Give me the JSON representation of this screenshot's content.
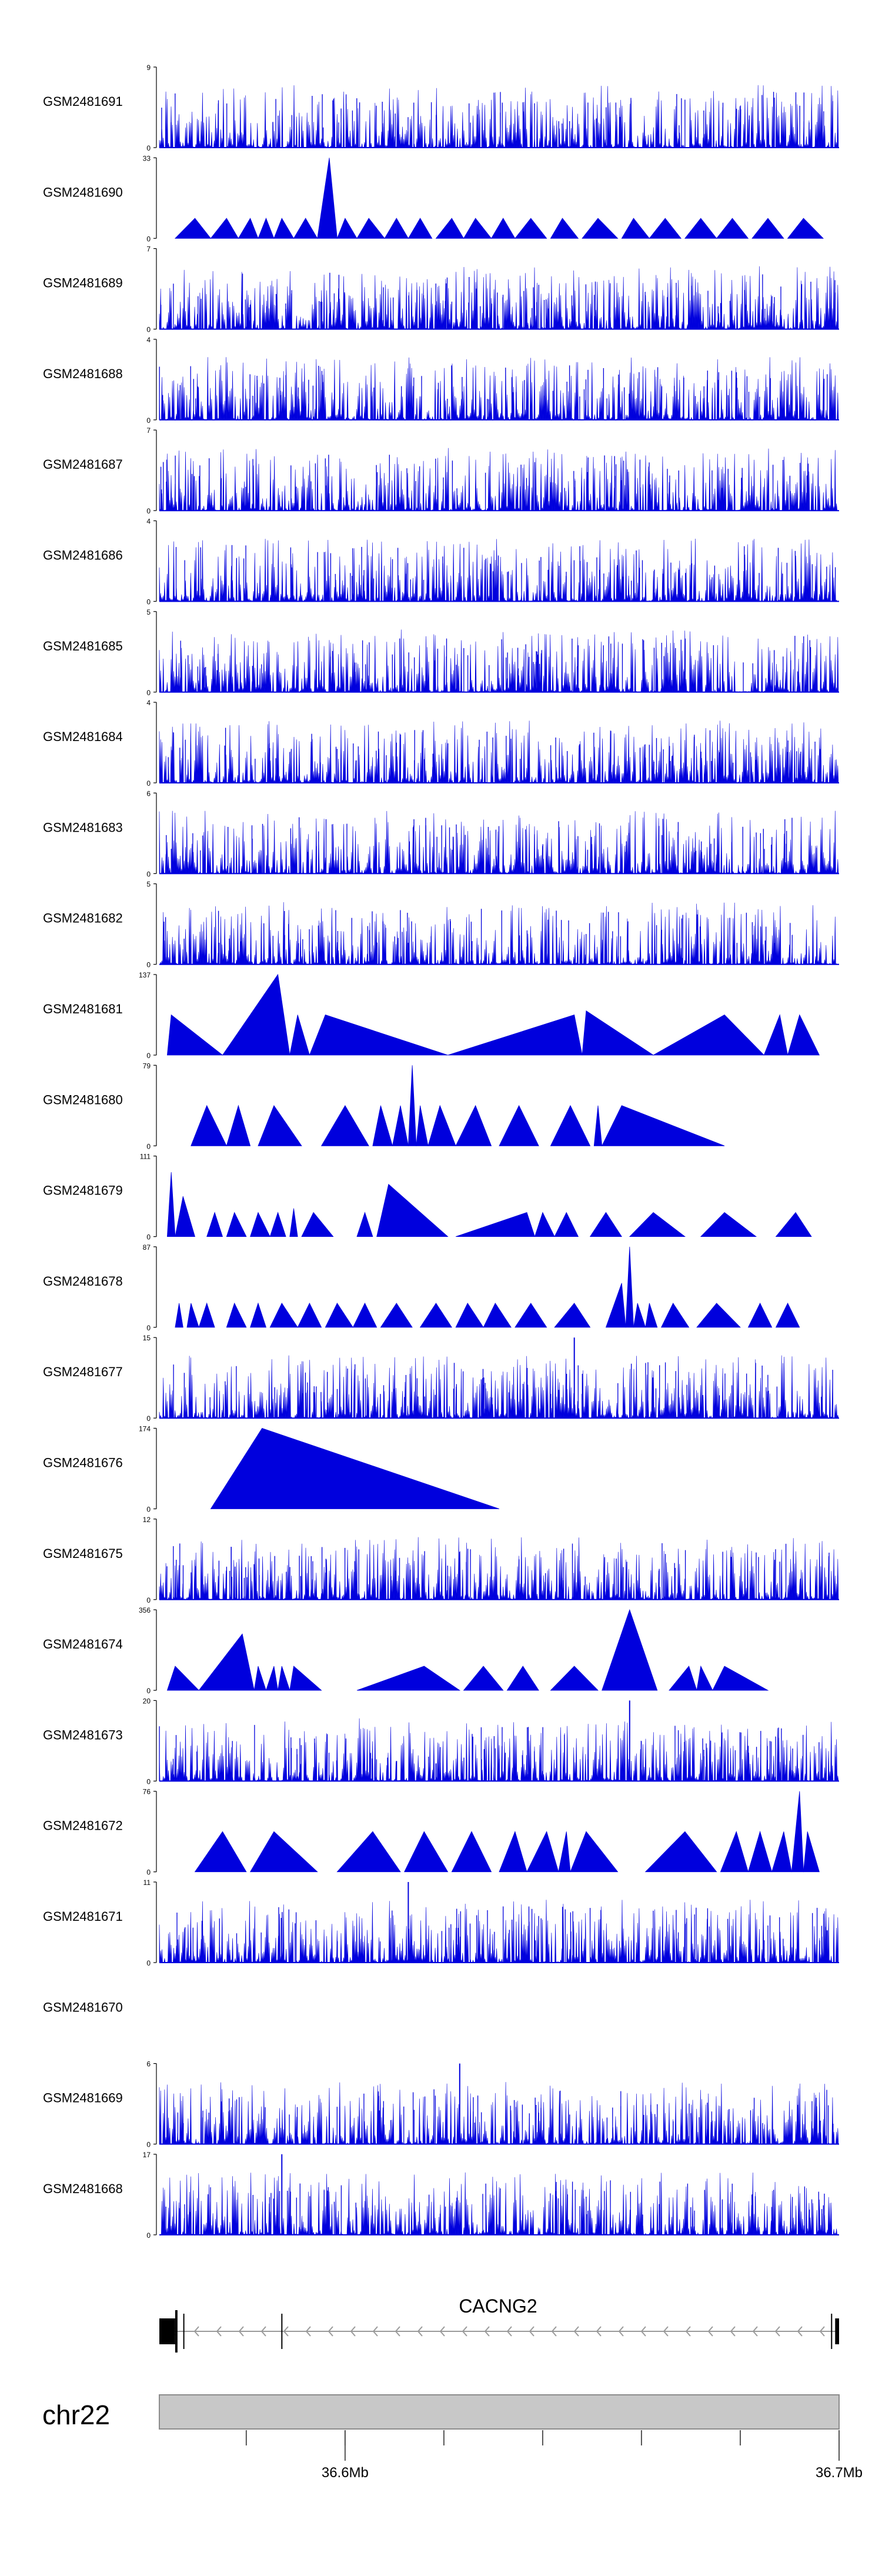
{
  "colors": {
    "signal": "#0000dd",
    "chrom_bar": "#c8c8c8",
    "text": "#000000",
    "gene": "#000000"
  },
  "chart_data": {
    "type": "area",
    "title": "",
    "xlabel": "",
    "ylabel": "",
    "xlim": [
      36.533,
      36.705
    ],
    "x_unit": "Mb",
    "tracks": [
      {
        "name": "GSM2481691",
        "ymax": "9",
        "style": "dense"
      },
      {
        "name": "GSM2481690",
        "ymax": "33",
        "style": "sparse",
        "peaks": [
          [
            36.537,
            0,
            36.542,
            0.25,
            36.546,
            0
          ],
          [
            36.546,
            0,
            36.55,
            0.25,
            36.553,
            0
          ],
          [
            36.553,
            0,
            36.556,
            0.25,
            36.558,
            0
          ],
          [
            36.558,
            0,
            36.56,
            0.25,
            36.562,
            0
          ],
          [
            36.562,
            0,
            36.564,
            0.25,
            36.567,
            0
          ],
          [
            36.567,
            0,
            36.57,
            0.25,
            36.573,
            0
          ],
          [
            36.573,
            0,
            36.576,
            1.0,
            36.578,
            0
          ],
          [
            36.578,
            0,
            36.58,
            0.25,
            36.583,
            0
          ],
          [
            36.583,
            0,
            36.586,
            0.25,
            36.59,
            0
          ],
          [
            36.59,
            0,
            36.593,
            0.25,
            36.596,
            0
          ],
          [
            36.596,
            0,
            36.599,
            0.25,
            36.602,
            0
          ],
          [
            36.603,
            0,
            36.607,
            0.25,
            36.61,
            0
          ],
          [
            36.61,
            0,
            36.613,
            0.25,
            36.617,
            0
          ],
          [
            36.617,
            0,
            36.62,
            0.25,
            36.623,
            0
          ],
          [
            36.623,
            0,
            36.627,
            0.25,
            36.631,
            0
          ],
          [
            36.632,
            0,
            36.635,
            0.25,
            36.639,
            0
          ],
          [
            36.64,
            0,
            36.644,
            0.25,
            36.649,
            0
          ],
          [
            36.65,
            0,
            36.653,
            0.25,
            36.657,
            0
          ],
          [
            36.657,
            0,
            36.661,
            0.25,
            36.665,
            0
          ],
          [
            36.666,
            0,
            36.67,
            0.25,
            36.674,
            0
          ],
          [
            36.674,
            0,
            36.678,
            0.25,
            36.682,
            0
          ],
          [
            36.683,
            0,
            36.687,
            0.25,
            36.691,
            0
          ],
          [
            36.692,
            0,
            36.696,
            0.25,
            36.701,
            0
          ]
        ]
      },
      {
        "name": "GSM2481689",
        "ymax": "7",
        "style": "dense"
      },
      {
        "name": "GSM2481688",
        "ymax": "4",
        "style": "dense"
      },
      {
        "name": "GSM2481687",
        "ymax": "7",
        "style": "dense"
      },
      {
        "name": "GSM2481686",
        "ymax": "4",
        "style": "dense"
      },
      {
        "name": "GSM2481685",
        "ymax": "5",
        "style": "dense"
      },
      {
        "name": "GSM2481684",
        "ymax": "4",
        "style": "dense"
      },
      {
        "name": "GSM2481683",
        "ymax": "6",
        "style": "dense"
      },
      {
        "name": "GSM2481682",
        "ymax": "5",
        "style": "dense"
      },
      {
        "name": "GSM2481681",
        "ymax": "137",
        "style": "sparse",
        "peaks": [
          [
            36.535,
            0,
            36.536,
            0.5,
            36.549,
            0
          ],
          [
            36.549,
            0,
            36.563,
            1.0,
            36.566,
            0
          ],
          [
            36.566,
            0,
            36.568,
            0.5,
            36.571,
            0
          ],
          [
            36.571,
            0,
            36.575,
            0.5,
            36.606,
            0
          ],
          [
            36.606,
            0,
            36.638,
            0.5,
            36.64,
            0
          ],
          [
            36.64,
            0,
            36.641,
            0.55,
            36.658,
            0
          ],
          [
            36.658,
            0,
            36.676,
            0.5,
            36.686,
            0
          ],
          [
            36.686,
            0,
            36.69,
            0.5,
            36.692,
            0
          ],
          [
            36.692,
            0,
            36.695,
            0.5,
            36.7,
            0
          ]
        ]
      },
      {
        "name": "GSM2481680",
        "ymax": "79",
        "style": "sparse",
        "peaks": [
          [
            36.541,
            0,
            36.545,
            0.5,
            36.55,
            0
          ],
          [
            36.55,
            0,
            36.553,
            0.5,
            36.556,
            0
          ],
          [
            36.558,
            0,
            36.562,
            0.5,
            36.569,
            0
          ],
          [
            36.574,
            0,
            36.58,
            0.5,
            36.586,
            0
          ],
          [
            36.587,
            0,
            36.589,
            0.5,
            36.592,
            0
          ],
          [
            36.592,
            0,
            36.594,
            0.5,
            36.596,
            0
          ],
          [
            36.596,
            0,
            36.597,
            1.0,
            36.598,
            0
          ],
          [
            36.598,
            0,
            36.599,
            0.5,
            36.601,
            0
          ],
          [
            36.601,
            0,
            36.604,
            0.5,
            36.608,
            0
          ],
          [
            36.608,
            0,
            36.613,
            0.5,
            36.617,
            0
          ],
          [
            36.619,
            0,
            36.624,
            0.5,
            36.629,
            0
          ],
          [
            36.632,
            0,
            36.637,
            0.5,
            36.642,
            0
          ],
          [
            36.643,
            0,
            36.644,
            0.5,
            36.645,
            0
          ],
          [
            36.645,
            0,
            36.65,
            0.5,
            36.676,
            0
          ]
        ]
      },
      {
        "name": "GSM2481679",
        "ymax": "111",
        "style": "sparse",
        "peaks": [
          [
            36.535,
            0,
            36.536,
            0.8,
            36.537,
            0
          ],
          [
            36.537,
            0,
            36.539,
            0.5,
            36.542,
            0
          ],
          [
            36.545,
            0,
            36.547,
            0.3,
            36.549,
            0
          ],
          [
            36.55,
            0,
            36.552,
            0.3,
            36.555,
            0
          ],
          [
            36.556,
            0,
            36.558,
            0.3,
            36.561,
            0
          ],
          [
            36.561,
            0,
            36.563,
            0.3,
            36.565,
            0
          ],
          [
            36.566,
            0,
            36.567,
            0.35,
            36.568,
            0
          ],
          [
            36.569,
            0,
            36.572,
            0.3,
            36.577,
            0
          ],
          [
            36.583,
            0,
            36.585,
            0.3,
            36.587,
            0
          ],
          [
            36.588,
            0,
            36.591,
            0.65,
            36.606,
            0
          ],
          [
            36.608,
            0,
            36.626,
            0.3,
            36.628,
            0
          ],
          [
            36.628,
            0,
            36.63,
            0.3,
            36.633,
            0
          ],
          [
            36.633,
            0,
            36.636,
            0.3,
            36.639,
            0
          ],
          [
            36.642,
            0,
            36.646,
            0.3,
            36.65,
            0
          ],
          [
            36.652,
            0,
            36.658,
            0.3,
            36.666,
            0
          ],
          [
            36.67,
            0,
            36.676,
            0.3,
            36.684,
            0
          ],
          [
            36.689,
            0,
            36.694,
            0.3,
            36.698,
            0
          ]
        ]
      },
      {
        "name": "GSM2481678",
        "ymax": "87",
        "style": "sparse",
        "peaks": [
          [
            36.537,
            0,
            36.538,
            0.3,
            36.539,
            0
          ],
          [
            36.54,
            0,
            36.541,
            0.3,
            36.543,
            0
          ],
          [
            36.543,
            0,
            36.545,
            0.3,
            36.547,
            0
          ],
          [
            36.55,
            0,
            36.552,
            0.3,
            36.555,
            0
          ],
          [
            36.556,
            0,
            36.558,
            0.3,
            36.56,
            0
          ],
          [
            36.561,
            0,
            36.564,
            0.3,
            36.568,
            0
          ],
          [
            36.568,
            0,
            36.571,
            0.3,
            36.574,
            0
          ],
          [
            36.575,
            0,
            36.578,
            0.3,
            36.582,
            0
          ],
          [
            36.582,
            0,
            36.585,
            0.3,
            36.588,
            0
          ],
          [
            36.589,
            0,
            36.593,
            0.3,
            36.597,
            0
          ],
          [
            36.599,
            0,
            36.603,
            0.3,
            36.607,
            0
          ],
          [
            36.608,
            0,
            36.611,
            0.3,
            36.615,
            0
          ],
          [
            36.615,
            0,
            36.618,
            0.3,
            36.622,
            0
          ],
          [
            36.623,
            0,
            36.627,
            0.3,
            36.631,
            0
          ],
          [
            36.633,
            0,
            36.638,
            0.3,
            36.642,
            0
          ],
          [
            36.646,
            0,
            36.65,
            0.55,
            36.651,
            0
          ],
          [
            36.651,
            0,
            36.652,
            1.0,
            36.653,
            0
          ],
          [
            36.653,
            0,
            36.654,
            0.3,
            36.656,
            0
          ],
          [
            36.656,
            0,
            36.657,
            0.3,
            36.659,
            0
          ],
          [
            36.66,
            0,
            36.663,
            0.3,
            36.667,
            0
          ],
          [
            36.669,
            0,
            36.674,
            0.3,
            36.68,
            0
          ],
          [
            36.682,
            0,
            36.685,
            0.3,
            36.688,
            0
          ],
          [
            36.689,
            0,
            36.692,
            0.3,
            36.695,
            0
          ]
        ]
      },
      {
        "name": "GSM2481677",
        "ymax": "15",
        "style": "dense",
        "spikes": [
          [
            36.638,
            1.0
          ],
          [
            36.636,
            0.55
          ],
          [
            36.634,
            0.35
          ],
          [
            36.632,
            0.3
          ],
          [
            36.64,
            0.3
          ],
          [
            36.658,
            0.2
          ]
        ]
      },
      {
        "name": "GSM2481676",
        "ymax": "174",
        "style": "sparse",
        "peaks": [
          [
            36.546,
            0,
            36.559,
            1.0,
            36.619,
            0
          ]
        ]
      },
      {
        "name": "GSM2481675",
        "ymax": "12",
        "style": "dense"
      },
      {
        "name": "GSM2481674",
        "ymax": "356",
        "style": "sparse",
        "peaks": [
          [
            36.535,
            0,
            36.537,
            0.3,
            36.543,
            0
          ],
          [
            36.543,
            0,
            36.554,
            0.7,
            36.557,
            0
          ],
          [
            36.557,
            0,
            36.558,
            0.3,
            36.56,
            0
          ],
          [
            36.56,
            0,
            36.562,
            0.3,
            36.563,
            0
          ],
          [
            36.563,
            0,
            36.564,
            0.3,
            36.566,
            0
          ],
          [
            36.566,
            0,
            36.567,
            0.3,
            36.574,
            0
          ],
          [
            36.583,
            0,
            36.6,
            0.3,
            36.609,
            0
          ],
          [
            36.61,
            0,
            36.615,
            0.3,
            36.62,
            0
          ],
          [
            36.621,
            0,
            36.625,
            0.3,
            36.629,
            0
          ],
          [
            36.632,
            0,
            36.638,
            0.3,
            36.644,
            0
          ],
          [
            36.645,
            0,
            36.652,
            1.0,
            36.659,
            0
          ],
          [
            36.662,
            0,
            36.667,
            0.3,
            36.669,
            0
          ],
          [
            36.669,
            0,
            36.67,
            0.3,
            36.673,
            0
          ],
          [
            36.673,
            0,
            36.676,
            0.3,
            36.687,
            0
          ]
        ]
      },
      {
        "name": "GSM2481673",
        "ymax": "20",
        "style": "dense",
        "spikes": [
          [
            36.652,
            1.0
          ],
          [
            36.593,
            0.25
          ],
          [
            36.603,
            0.22
          ]
        ]
      },
      {
        "name": "GSM2481672",
        "ymax": "76",
        "style": "sparse",
        "peaks": [
          [
            36.542,
            0,
            36.549,
            0.5,
            36.555,
            0
          ],
          [
            36.556,
            0,
            36.562,
            0.5,
            36.573,
            0
          ],
          [
            36.578,
            0,
            36.587,
            0.5,
            36.594,
            0
          ],
          [
            36.595,
            0,
            36.6,
            0.5,
            36.606,
            0
          ],
          [
            36.607,
            0,
            36.612,
            0.5,
            36.617,
            0
          ],
          [
            36.619,
            0,
            36.623,
            0.5,
            36.626,
            0
          ],
          [
            36.626,
            0,
            36.631,
            0.5,
            36.634,
            0
          ],
          [
            36.634,
            0,
            36.636,
            0.5,
            36.637,
            0
          ],
          [
            36.637,
            0,
            36.641,
            0.5,
            36.649,
            0
          ],
          [
            36.656,
            0,
            36.666,
            0.5,
            36.674,
            0
          ],
          [
            36.675,
            0,
            36.679,
            0.5,
            36.682,
            0
          ],
          [
            36.682,
            0,
            36.685,
            0.5,
            36.688,
            0
          ],
          [
            36.688,
            0,
            36.691,
            0.5,
            36.693,
            0
          ],
          [
            36.693,
            0,
            36.695,
            1.0,
            36.696,
            0
          ],
          [
            36.696,
            0,
            36.697,
            0.5,
            36.7,
            0
          ]
        ]
      },
      {
        "name": "GSM2481671",
        "ymax": "11",
        "style": "dense",
        "spikes": [
          [
            36.596,
            1.0
          ],
          [
            36.702,
            0.4
          ]
        ]
      },
      {
        "name": "GSM2481670",
        "ymax": "",
        "style": "empty"
      },
      {
        "name": "GSM2481669",
        "ymax": "6",
        "style": "dense",
        "spikes": [
          [
            36.609,
            1.0
          ]
        ]
      },
      {
        "name": "GSM2481668",
        "ymax": "17",
        "style": "dense",
        "spikes": [
          [
            36.564,
            1.0
          ],
          [
            36.683,
            0.5
          ]
        ]
      }
    ],
    "gene": {
      "name": "CACNG2",
      "start": 36.533,
      "end": 36.705,
      "strand": "-",
      "exons": [
        [
          36.533,
          36.537
        ],
        [
          36.537,
          36.538
        ],
        [
          36.564,
          36.5645
        ],
        [
          36.704,
          36.705
        ]
      ]
    },
    "ideogram": {
      "chromosome": "chr22",
      "ticks": [
        36.555,
        36.58,
        36.605,
        36.63,
        36.655,
        36.68
      ],
      "tick_labels": [
        {
          "value": 36.58,
          "label": "36.6Mb"
        },
        {
          "value": 36.705,
          "label": "36.7Mb"
        }
      ]
    }
  }
}
